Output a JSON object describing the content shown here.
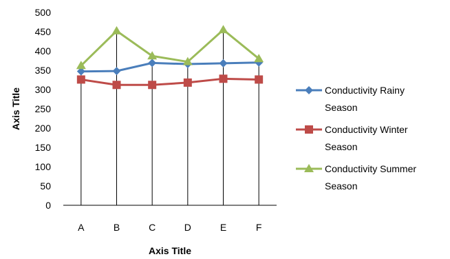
{
  "chart_data": {
    "type": "line",
    "categories": [
      "A",
      "B",
      "C",
      "D",
      "E",
      "F"
    ],
    "series": [
      {
        "name": "Conductivity Rainy Season",
        "name_lines": [
          "Conductivity Rainy",
          "Season"
        ],
        "color": "#4a7ebb",
        "marker": "diamond",
        "values": [
          347,
          348,
          369,
          366,
          368,
          370
        ]
      },
      {
        "name": "Conductivity Winter Season",
        "name_lines": [
          "Conductivity Winter",
          "Season"
        ],
        "color": "#be4b48",
        "marker": "square",
        "values": [
          326,
          312,
          312,
          318,
          328,
          326
        ]
      },
      {
        "name": "Conductivity Summer Season",
        "name_lines": [
          "Conductivity Summer",
          "Season"
        ],
        "color": "#9bbb59",
        "marker": "triangle",
        "values": [
          362,
          452,
          387,
          372,
          455,
          380
        ]
      }
    ],
    "xlabel": "Axis Title",
    "ylabel": "Axis Title",
    "ylim": [
      0,
      500
    ],
    "yticks": [
      "0",
      "50",
      "100",
      "150",
      "200",
      "250",
      "300",
      "350",
      "400",
      "450",
      "500"
    ],
    "drop_lines": true,
    "grid": false,
    "legend_position": "right"
  }
}
